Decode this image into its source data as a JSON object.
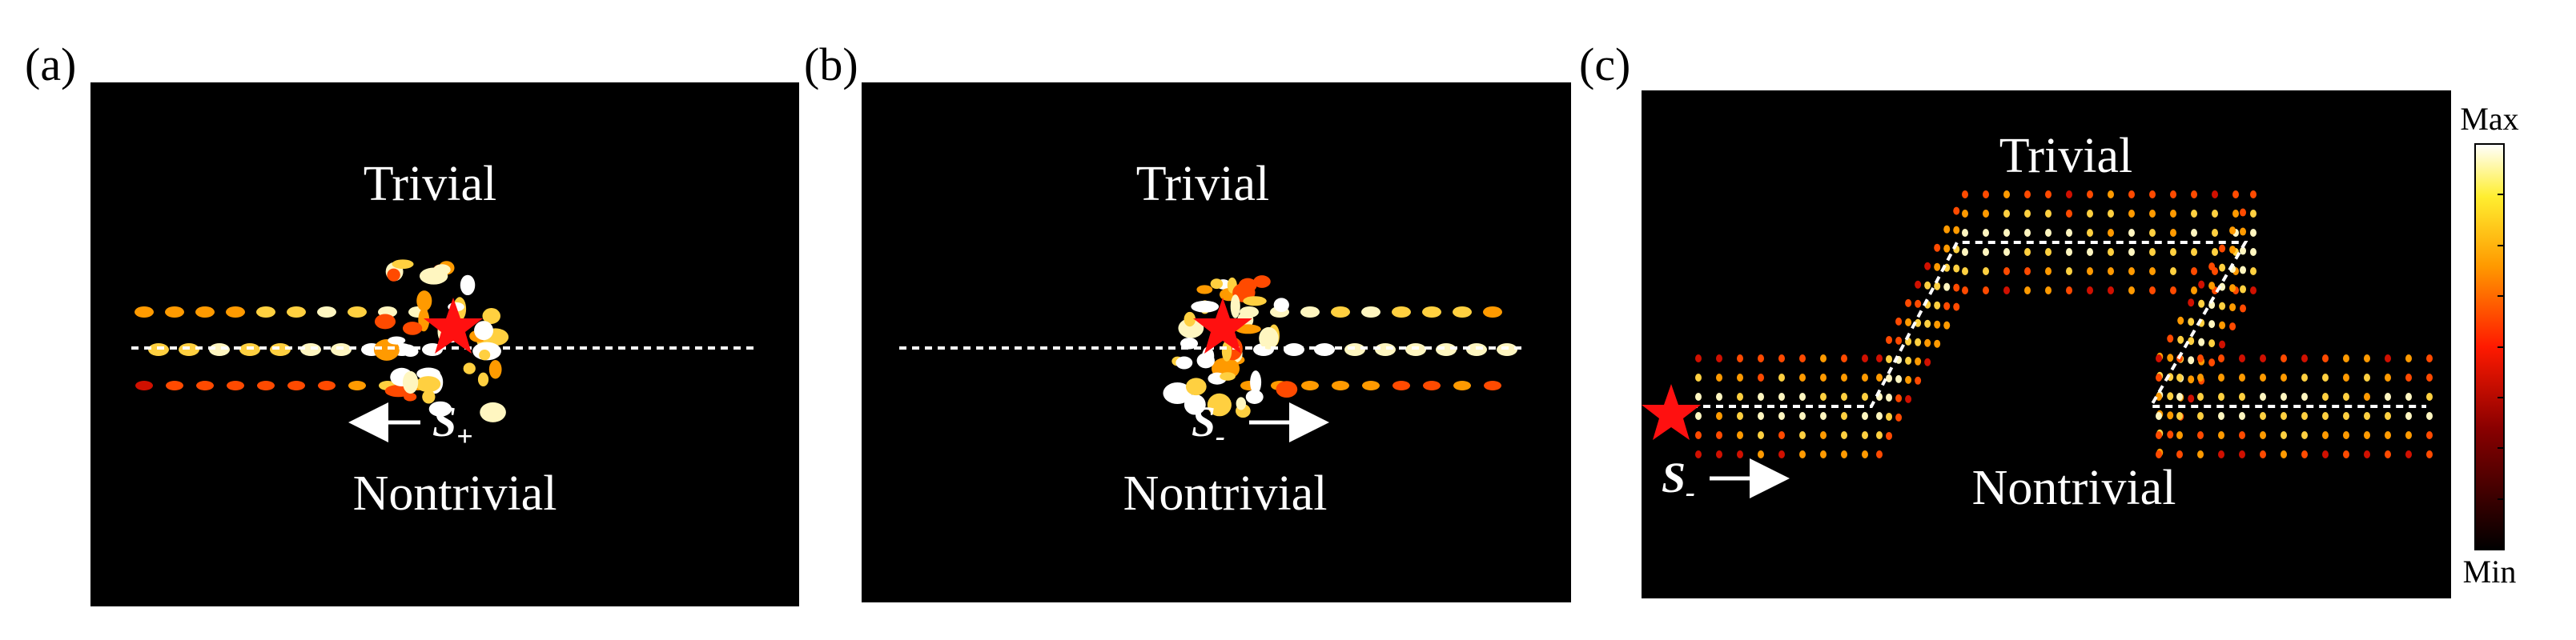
{
  "panels": [
    {
      "label": "(a)",
      "top": "Trivial",
      "bottom": "Nontrivial",
      "source": {
        "symbol": "S",
        "subscript": "+"
      }
    },
    {
      "label": "(b)",
      "top": "Trivial",
      "bottom": "Nontrivial",
      "source": {
        "symbol": "S",
        "subscript": "-"
      }
    },
    {
      "label": "(c)",
      "top": "Trivial",
      "bottom": "Nontrivial",
      "source": {
        "symbol": "S",
        "subscript": "-"
      }
    }
  ],
  "colorbar": {
    "max": "Max",
    "min": "Min"
  }
}
